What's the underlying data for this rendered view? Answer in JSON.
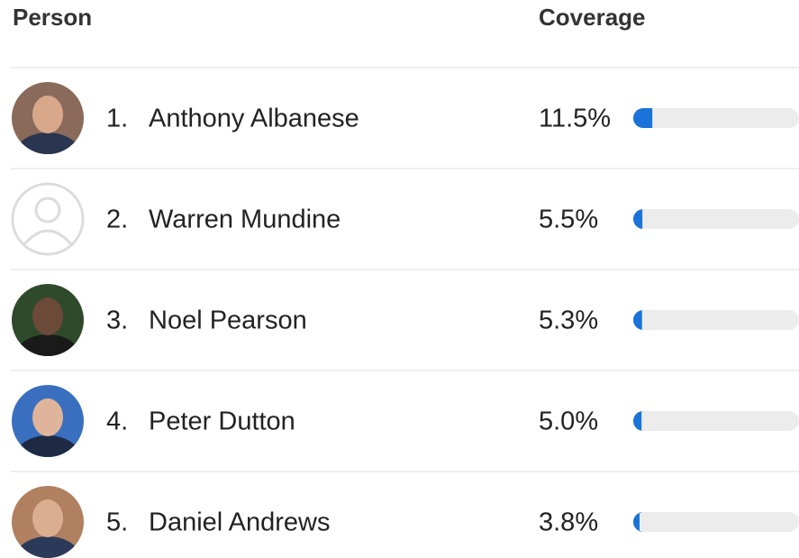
{
  "header": {
    "person": "Person",
    "coverage": "Coverage"
  },
  "table": {
    "xlim": [
      0,
      100
    ],
    "rows": [
      {
        "rank": "1.",
        "name": "Anthony Albanese",
        "coverage": 11.5,
        "coverage_label": "11.5%"
      },
      {
        "rank": "2.",
        "name": "Warren Mundine",
        "coverage": 5.5,
        "coverage_label": "5.5%"
      },
      {
        "rank": "3.",
        "name": "Noel Pearson",
        "coverage": 5.3,
        "coverage_label": "5.3%"
      },
      {
        "rank": "4.",
        "name": "Peter Dutton",
        "coverage": 5.0,
        "coverage_label": "5.0%"
      },
      {
        "rank": "5.",
        "name": "Daniel Andrews",
        "coverage": 3.8,
        "coverage_label": "3.8%"
      }
    ]
  }
}
